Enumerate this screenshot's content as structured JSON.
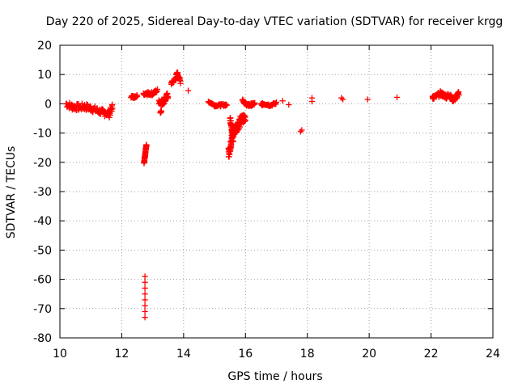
{
  "chart_data": {
    "type": "scatter",
    "title": "Day 220 of 2025, Sidereal Day-to-day VTEC variation (SDTVAR) for receiver krgg",
    "xlabel": "GPS time / hours",
    "ylabel": "SDTVAR / TECUs",
    "xlim": [
      10,
      24
    ],
    "ylim": [
      -80,
      20
    ],
    "xticks": [
      "10",
      "12",
      "14",
      "16",
      "18",
      "20",
      "22",
      "24"
    ],
    "yticks": [
      "20",
      "10",
      "0",
      "-10",
      "-20",
      "-30",
      "-40",
      "-50",
      "-60",
      "-70",
      "-80"
    ],
    "grid": true,
    "marker": "plus",
    "series_color": "#ff0000",
    "segments": [
      {
        "name": "arc-10.2-11.7",
        "x": [
          10.2,
          10.4,
          10.6,
          10.8,
          11.0,
          11.2,
          11.4,
          11.6,
          11.7
        ],
        "y": [
          0.0,
          -1.0,
          -1.2,
          -1.0,
          -1.5,
          -2.3,
          -3.0,
          -3.5,
          -1.0
        ],
        "spread": 1.2
      },
      {
        "name": "arc-12.3-12.5",
        "x": [
          12.3,
          12.4,
          12.5
        ],
        "y": [
          2.5,
          2.3,
          2.8
        ],
        "spread": 0.4
      },
      {
        "name": "arc-12.7-12.8-drop",
        "x": [
          12.72,
          12.74,
          12.76,
          12.78,
          12.8
        ],
        "y": [
          -20.0,
          -18.5,
          -17.0,
          -15.5,
          -14.0
        ],
        "spread": 0.4
      },
      {
        "name": "arc-12.7-deep-drop",
        "x": [
          12.75,
          12.75,
          12.75,
          12.75,
          12.75,
          12.75,
          12.75,
          12.75
        ],
        "y": [
          -73.0,
          -71.0,
          -69.0,
          -67.0,
          -65.0,
          -63.0,
          -61.0,
          -59.0
        ],
        "spread": 0.0
      },
      {
        "name": "arc-12.7-13.1",
        "x": [
          12.7,
          12.85,
          13.0,
          13.15
        ],
        "y": [
          3.0,
          3.5,
          3.5,
          4.5
        ],
        "spread": 0.6
      },
      {
        "name": "arc-13.2-13.5",
        "x": [
          13.2,
          13.3,
          13.4,
          13.5
        ],
        "y": [
          1.0,
          0.5,
          1.5,
          3.0
        ],
        "spread": 1.2
      },
      {
        "name": "arc-13.25-dip",
        "x": [
          13.25,
          13.28
        ],
        "y": [
          -3.0,
          -2.5
        ],
        "spread": 0.2
      },
      {
        "name": "arc-13.6-13.9",
        "x": [
          13.6,
          13.7,
          13.8,
          13.9
        ],
        "y": [
          7.0,
          8.0,
          10.5,
          7.5
        ],
        "spread": 0.6
      },
      {
        "name": "point-14.15",
        "x": [
          14.15
        ],
        "y": [
          4.5
        ],
        "spread": 0.0
      },
      {
        "name": "arc-14.8-15.4",
        "x": [
          14.8,
          15.0,
          15.2,
          15.4
        ],
        "y": [
          0.8,
          -0.5,
          -0.5,
          -0.3
        ],
        "spread": 0.4
      },
      {
        "name": "arc-15.4-16.0-drop",
        "x": [
          15.45,
          15.5,
          15.55,
          15.6,
          15.7,
          15.8,
          15.9,
          16.0
        ],
        "y": [
          -17.0,
          -15.0,
          -12.0,
          -10.0,
          -8.0,
          -6.5,
          -5.5,
          -4.0
        ],
        "spread": 2.0
      },
      {
        "name": "arc-15.5-15.6-descend",
        "x": [
          15.5,
          15.55,
          15.6
        ],
        "y": [
          -5.0,
          -8.0,
          -12.0
        ],
        "spread": 1.0
      },
      {
        "name": "arc-15.9-16.3",
        "x": [
          15.9,
          16.0,
          16.1,
          16.2,
          16.3
        ],
        "y": [
          1.5,
          0.0,
          -0.5,
          -0.3,
          0.0
        ],
        "spread": 0.5
      },
      {
        "name": "arc-16.5-17.0",
        "x": [
          16.5,
          16.6,
          16.8,
          17.0
        ],
        "y": [
          -0.3,
          0.0,
          -0.5,
          0.2
        ],
        "spread": 0.4
      },
      {
        "name": "points-17.2-17.4",
        "x": [
          17.2,
          17.4
        ],
        "y": [
          1.0,
          -0.3
        ],
        "spread": 0.0
      },
      {
        "name": "point-17.8",
        "x": [
          17.78,
          17.82
        ],
        "y": [
          -9.5,
          -9.0
        ],
        "spread": 0.0
      },
      {
        "name": "points-18.15",
        "x": [
          18.15,
          18.15
        ],
        "y": [
          2.0,
          0.8
        ],
        "spread": 0.0
      },
      {
        "name": "point-19.1",
        "x": [
          19.1,
          19.15
        ],
        "y": [
          2.0,
          1.5
        ],
        "spread": 0.0
      },
      {
        "name": "point-19.95",
        "x": [
          19.95
        ],
        "y": [
          1.5
        ],
        "spread": 0.0
      },
      {
        "name": "point-20.9",
        "x": [
          20.9
        ],
        "y": [
          2.2
        ],
        "spread": 0.0
      },
      {
        "name": "arc-22.0-22.9",
        "x": [
          22.05,
          22.1,
          22.3,
          22.4,
          22.5,
          22.6,
          22.7,
          22.8,
          22.9
        ],
        "y": [
          2.5,
          2.0,
          3.5,
          3.0,
          2.5,
          3.0,
          1.5,
          2.0,
          3.5
        ],
        "spread": 0.8
      }
    ]
  }
}
